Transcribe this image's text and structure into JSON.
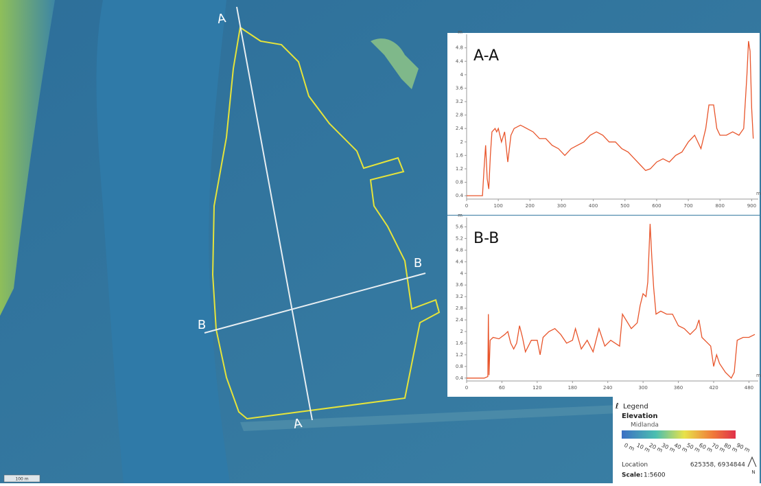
{
  "map": {
    "section_labels": [
      "A",
      "A",
      "B",
      "B"
    ],
    "scale_bar": "100 m"
  },
  "legend": {
    "title": "Legend",
    "heading": "Elevation",
    "source": "Midlanda",
    "scale_labels": [
      "0 m",
      "10 m",
      "20 m",
      "30 m",
      "40 m",
      "50 m",
      "60 m",
      "70 m",
      "80 m",
      "90 m"
    ],
    "location_label": "Location",
    "location_value": "625358, 6934844",
    "scale_label": "Scale:",
    "scale_value": "1:5600",
    "north": "N"
  },
  "chart_data": [
    {
      "type": "line",
      "title": "A-A",
      "y_label": "m",
      "x_label": "m",
      "color": "#e8542a",
      "x": [
        0,
        50,
        55,
        60,
        65,
        70,
        75,
        80,
        90,
        95,
        100,
        110,
        120,
        130,
        140,
        150,
        170,
        190,
        210,
        230,
        250,
        270,
        290,
        310,
        330,
        350,
        370,
        390,
        410,
        430,
        450,
        470,
        490,
        510,
        530,
        550,
        565,
        580,
        600,
        620,
        640,
        660,
        680,
        700,
        720,
        740,
        755,
        765,
        780,
        790,
        800,
        820,
        840,
        860,
        875,
        885,
        890,
        895,
        900,
        905
      ],
      "values": [
        0.4,
        0.4,
        1.2,
        1.9,
        0.9,
        0.6,
        1.6,
        2.3,
        2.4,
        2.3,
        2.4,
        2.0,
        2.3,
        1.4,
        2.2,
        2.4,
        2.5,
        2.4,
        2.3,
        2.1,
        2.1,
        1.9,
        1.8,
        1.6,
        1.8,
        1.9,
        2.0,
        2.2,
        2.3,
        2.2,
        2.0,
        2.0,
        1.8,
        1.7,
        1.5,
        1.3,
        1.15,
        1.2,
        1.4,
        1.5,
        1.4,
        1.6,
        1.7,
        2.0,
        2.2,
        1.8,
        2.4,
        3.1,
        3.1,
        2.4,
        2.2,
        2.2,
        2.3,
        2.2,
        2.4,
        4.0,
        5.0,
        4.7,
        3.0,
        2.1
      ],
      "xlim": [
        0,
        910
      ],
      "xticks": [
        0,
        100,
        200,
        300,
        400,
        500,
        600,
        700,
        800,
        900
      ],
      "ylim": [
        0.3,
        5.1
      ],
      "yticks": [
        0.4,
        0.8,
        1.2,
        1.6,
        2,
        2.4,
        2.8,
        3.2,
        3.6,
        4,
        4.4,
        4.8
      ]
    },
    {
      "type": "line",
      "title": "B-B",
      "y_label": "m",
      "x_label": "m",
      "color": "#e8542a",
      "x": [
        0,
        30,
        36,
        37,
        38,
        40,
        45,
        55,
        65,
        70,
        75,
        80,
        85,
        90,
        95,
        100,
        110,
        120,
        125,
        130,
        140,
        150,
        160,
        170,
        180,
        185,
        195,
        205,
        215,
        225,
        235,
        245,
        260,
        265,
        280,
        290,
        295,
        300,
        305,
        308,
        312,
        315,
        318,
        322,
        330,
        340,
        350,
        360,
        370,
        380,
        390,
        395,
        400,
        410,
        415,
        420,
        425,
        430,
        440,
        450,
        455,
        460,
        470,
        480,
        490
      ],
      "values": [
        0.4,
        0.4,
        0.45,
        2.6,
        0.5,
        1.7,
        1.8,
        1.75,
        1.9,
        2.0,
        1.6,
        1.4,
        1.6,
        2.2,
        1.8,
        1.3,
        1.7,
        1.7,
        1.2,
        1.8,
        2.0,
        2.1,
        1.9,
        1.6,
        1.7,
        2.1,
        1.4,
        1.7,
        1.3,
        2.1,
        1.5,
        1.7,
        1.5,
        2.6,
        2.1,
        2.3,
        2.9,
        3.3,
        3.2,
        3.7,
        5.7,
        4.5,
        3.5,
        2.6,
        2.7,
        2.6,
        2.6,
        2.2,
        2.1,
        1.9,
        2.1,
        2.4,
        1.8,
        1.6,
        1.5,
        0.8,
        1.2,
        0.9,
        0.6,
        0.4,
        0.6,
        1.7,
        1.8,
        1.8,
        1.9
      ],
      "xlim": [
        0,
        490
      ],
      "xticks": [
        0,
        60,
        120,
        180,
        240,
        300,
        360,
        420,
        480
      ],
      "ylim": [
        0.3,
        5.8
      ],
      "yticks": [
        0.4,
        0.8,
        1.2,
        1.6,
        2,
        2.4,
        2.8,
        3.2,
        3.6,
        4,
        4.4,
        4.8,
        5.2,
        5.6
      ]
    }
  ]
}
